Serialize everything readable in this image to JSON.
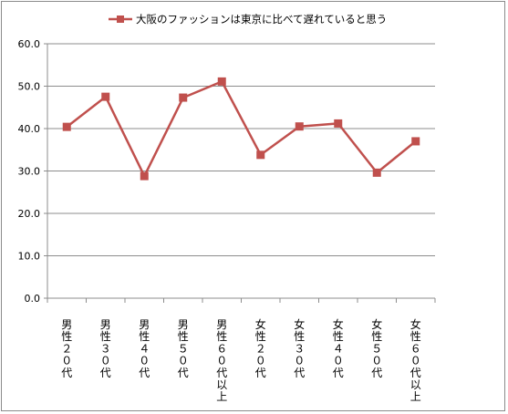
{
  "chart_data": {
    "type": "line",
    "categories": [
      "男性２０代",
      "男性３０代",
      "男性４０代",
      "男性５０代",
      "男性６０代以上",
      "女性２０代",
      "女性３０代",
      "女性４０代",
      "女性５０代",
      "女性６０代以上"
    ],
    "series": [
      {
        "name": "大阪のファッションは東京に比べて遅れていると思う",
        "values": [
          40.4,
          47.5,
          28.8,
          47.3,
          51.1,
          33.8,
          40.5,
          41.2,
          29.6,
          37.0
        ],
        "color": "#c0504d"
      }
    ],
    "yticks": [
      "0.0",
      "10.0",
      "20.0",
      "30.0",
      "40.0",
      "50.0",
      "60.0"
    ],
    "ylim": [
      0,
      60
    ],
    "grid": true,
    "legend_position": "top"
  }
}
